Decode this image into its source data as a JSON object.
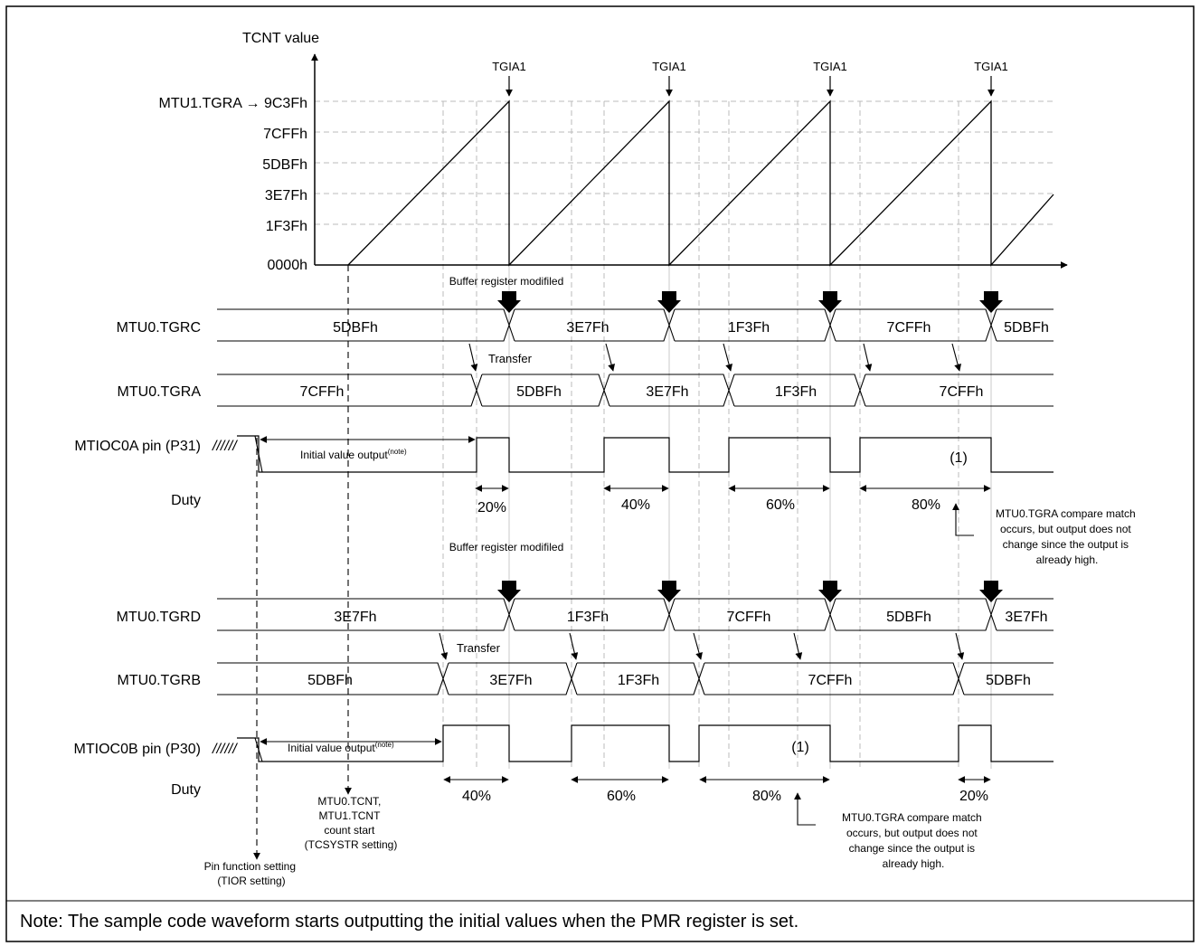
{
  "axis": {
    "title": "TCNT value",
    "ticks": [
      {
        "label": "MTU1.TGRA → 9C3Fh",
        "value": 40000
      },
      {
        "label": "7CFFh",
        "value": 32000
      },
      {
        "label": "5DBFh",
        "value": 24000
      },
      {
        "label": "3E7Fh",
        "value": 16000
      },
      {
        "label": "1F3Fh",
        "value": 8000
      },
      {
        "label": "0000h",
        "value": 0
      }
    ],
    "tgia_label": "TGIA1"
  },
  "rows": {
    "tgrc": "MTU0.TGRC",
    "tgra": "MTU0.TGRA",
    "pin_a": "MTIOC0A pin (P31)",
    "duty_a": "Duty",
    "tgrd": "MTU0.TGRD",
    "tgrb": "MTU0.TGRB",
    "pin_b": "MTIOC0B pin (P30)",
    "duty_b": "Duty"
  },
  "buses": {
    "tgrc": [
      "5DBFh",
      "3E7Fh",
      "1F3Fh",
      "7CFFh",
      "5DBFh"
    ],
    "tgra": [
      "7CFFh",
      "5DBFh",
      "3E7Fh",
      "1F3Fh",
      "7CFFh"
    ],
    "tgrd": [
      "3E7Fh",
      "1F3Fh",
      "7CFFh",
      "5DBFh",
      "3E7Fh"
    ],
    "tgrb": [
      "5DBFh",
      "3E7Fh",
      "1F3Fh",
      "7CFFh",
      "5DBFh"
    ]
  },
  "duties": {
    "a": [
      "20%",
      "40%",
      "60%",
      "80%"
    ],
    "b": [
      "40%",
      "60%",
      "80%",
      "20%"
    ]
  },
  "labels": {
    "buffer_modified": "Buffer register modifiled",
    "transfer": "Transfer",
    "initial_value": "Initial value output",
    "note_sup": "(note)",
    "marker": "(1)",
    "hatch": "//////",
    "compare_note": [
      "MTU0.TGRA compare match",
      "occurs, but output does not",
      "change since the output is",
      "already high."
    ],
    "count_start": [
      "MTU0.TCNT,",
      "MTU1.TCNT",
      "count start",
      "(TCSYSTR setting)"
    ],
    "pin_function": [
      "Pin function setting",
      "(TIOR setting)"
    ]
  },
  "note": "Note: The sample code waveform starts outputting the initial values when the PMR register is set."
}
